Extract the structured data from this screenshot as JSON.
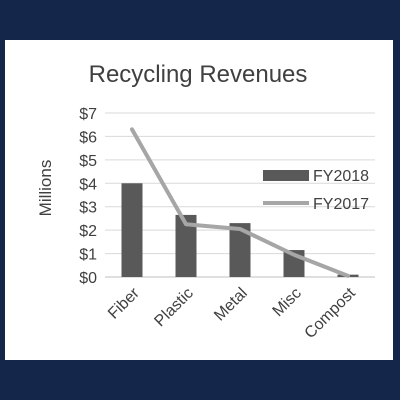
{
  "chart_data": {
    "type": "bar",
    "title": "Recycling Revenues",
    "ylabel": "Millions",
    "categories": [
      "Fiber",
      "Plastic",
      "Metal",
      "Misc",
      "Compost"
    ],
    "series": [
      {
        "name": "FY2018",
        "kind": "bar",
        "color": "#595959",
        "values": [
          4.0,
          2.65,
          2.3,
          1.15,
          0.1
        ]
      },
      {
        "name": "FY2017",
        "kind": "line",
        "color": "#a6a6a6",
        "values": [
          6.3,
          2.25,
          2.05,
          0.95,
          0.05
        ]
      }
    ],
    "ylim": [
      0,
      7
    ],
    "ytick_values": [
      0,
      1,
      2,
      3,
      4,
      5,
      6,
      7
    ],
    "ytick_labels": [
      "$0",
      "$1",
      "$2",
      "$3",
      "$4",
      "$5",
      "$6",
      "$7"
    ],
    "grid": true,
    "legend_position": "right"
  }
}
